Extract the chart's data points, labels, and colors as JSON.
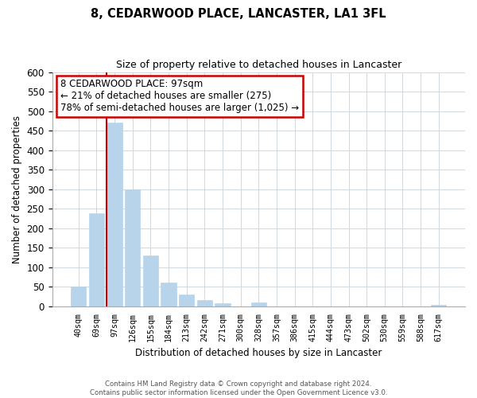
{
  "title": "8, CEDARWOOD PLACE, LANCASTER, LA1 3FL",
  "subtitle": "Size of property relative to detached houses in Lancaster",
  "xlabel": "Distribution of detached houses by size in Lancaster",
  "ylabel": "Number of detached properties",
  "categories": [
    "40sqm",
    "69sqm",
    "97sqm",
    "126sqm",
    "155sqm",
    "184sqm",
    "213sqm",
    "242sqm",
    "271sqm",
    "300sqm",
    "328sqm",
    "357sqm",
    "386sqm",
    "415sqm",
    "444sqm",
    "473sqm",
    "502sqm",
    "530sqm",
    "559sqm",
    "588sqm",
    "617sqm"
  ],
  "values": [
    50,
    238,
    470,
    300,
    130,
    62,
    30,
    16,
    8,
    0,
    10,
    0,
    0,
    0,
    0,
    0,
    0,
    0,
    0,
    0,
    5
  ],
  "bar_color": "#b8d4ea",
  "highlight_index": 2,
  "highlight_color": "#cc0000",
  "ylim": [
    0,
    600
  ],
  "yticks": [
    0,
    50,
    100,
    150,
    200,
    250,
    300,
    350,
    400,
    450,
    500,
    550,
    600
  ],
  "ann_line1": "8 CEDARWOOD PLACE: 97sqm",
  "ann_line2": "← 21% of detached houses are smaller (275)",
  "ann_line3": "78% of semi-detached houses are larger (1,025) →",
  "footer_line1": "Contains HM Land Registry data © Crown copyright and database right 2024.",
  "footer_line2": "Contains public sector information licensed under the Open Government Licence v3.0.",
  "background_color": "#ffffff",
  "grid_color": "#d0d8e0"
}
